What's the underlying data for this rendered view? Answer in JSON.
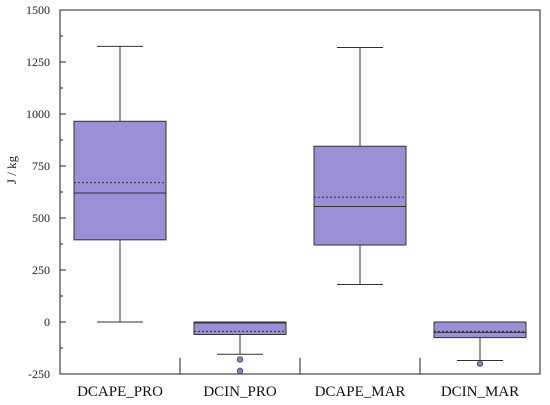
{
  "chart_data": {
    "type": "box",
    "ylabel": "J / kg",
    "ylim": [
      -250,
      1500
    ],
    "yticks": [
      -250,
      0,
      250,
      500,
      750,
      1000,
      1250,
      1500
    ],
    "ytick_labels": [
      "-250",
      "0",
      "250",
      "500",
      "750",
      "1000",
      "1250",
      "1500"
    ],
    "categories": [
      "DCAPE_PRO",
      "DCIN_PRO",
      "DCAPE_MAR",
      "DCIN_MAR"
    ],
    "grid": false,
    "colors": {
      "box_fill": "#9b8fd6",
      "box_edge": "#333333",
      "outlier": "#8a80c8"
    },
    "boxes": [
      {
        "whisker_low": 0,
        "q1": 395,
        "median": 620,
        "mean": 670,
        "q3": 965,
        "whisker_high": 1325,
        "outliers": []
      },
      {
        "whisker_low": -155,
        "q1": -60,
        "median": -5,
        "mean": -45,
        "q3": 0,
        "whisker_high": 0,
        "outliers": [
          -180,
          -235
        ]
      },
      {
        "whisker_low": 180,
        "q1": 370,
        "median": 555,
        "mean": 600,
        "q3": 845,
        "whisker_high": 1320,
        "outliers": []
      },
      {
        "whisker_low": -185,
        "q1": -75,
        "median": -50,
        "mean": -45,
        "q3": 0,
        "whisker_high": 0,
        "outliers": [
          -200
        ]
      }
    ]
  }
}
